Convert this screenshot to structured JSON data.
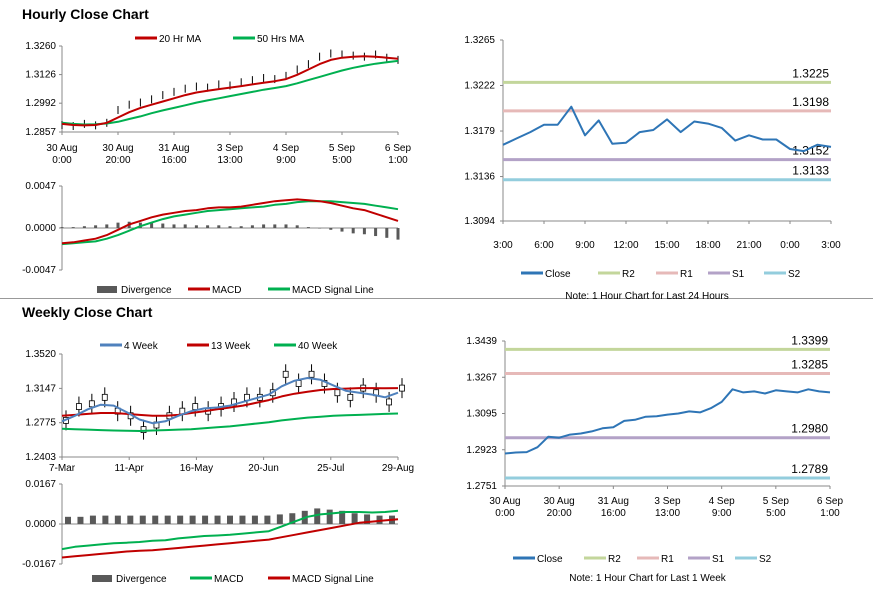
{
  "hourly_title": "Hourly Close Chart",
  "weekly_title": "Weekly Close Chart",
  "note_hourly": "Note: 1 Hour Chart for Last 24 Hours",
  "note_weekly": "Note: 1 Hour Chart for Last 1 Week",
  "colors": {
    "close": "#2e75b6",
    "r2": "#c3d69b",
    "r1": "#e6b9b8",
    "s1": "#b3a2c7",
    "s2": "#93cddd",
    "red": "#c00000",
    "green": "#00b050",
    "blue": "#4f81bd",
    "grey": "#595959"
  },
  "chart_data": [
    {
      "id": "hourly-price",
      "type": "line",
      "legend": [
        "20 Hr MA",
        "50 Hrs MA"
      ],
      "yticks": [
        "1.3260",
        "1.3126",
        "1.2992",
        "1.2857"
      ],
      "ylim": [
        1.2857,
        1.326
      ],
      "xticks": [
        "30 Aug\n0:00",
        "30 Aug\n20:00",
        "31 Aug\n16:00",
        "3 Sep\n13:00",
        "4 Sep\n9:00",
        "5 Sep\n5:00",
        "6 Sep\n1:00"
      ],
      "series": [
        {
          "name": "Close",
          "values": [
            1.289,
            1.2885,
            1.2895,
            1.2888,
            1.29,
            1.296,
            1.2985,
            1.2995,
            1.301,
            1.303,
            1.3045,
            1.306,
            1.307,
            1.3065,
            1.308,
            1.3075,
            1.309,
            1.31,
            1.311,
            1.3105,
            1.312,
            1.315,
            1.3175,
            1.321,
            1.3225,
            1.322,
            1.3215,
            1.321,
            1.322,
            1.3205,
            1.3195
          ]
        },
        {
          "name": "20 Hr MA",
          "values": [
            1.2895,
            1.289,
            1.2888,
            1.289,
            1.29,
            1.2925,
            1.295,
            1.297,
            1.2985,
            1.3,
            1.3015,
            1.303,
            1.3042,
            1.305,
            1.3058,
            1.3065,
            1.3072,
            1.308,
            1.3088,
            1.3095,
            1.3105,
            1.3125,
            1.315,
            1.3175,
            1.3195,
            1.3205,
            1.321,
            1.3212,
            1.321,
            1.3205,
            1.32
          ]
        },
        {
          "name": "50 Hrs MA",
          "values": [
            1.29,
            1.2895,
            1.2892,
            1.2893,
            1.2897,
            1.2905,
            1.2918,
            1.293,
            1.2945,
            1.2958,
            1.297,
            1.2982,
            1.2995,
            1.3005,
            1.3015,
            1.3025,
            1.3035,
            1.3045,
            1.3055,
            1.3063,
            1.3072,
            1.3085,
            1.31,
            1.3115,
            1.313,
            1.3145,
            1.3158,
            1.3168,
            1.3177,
            1.3184,
            1.319
          ]
        }
      ]
    },
    {
      "id": "hourly-macd",
      "type": "line",
      "legend": [
        "Divergence",
        "MACD",
        "MACD Signal Line"
      ],
      "yticks": [
        "0.0047",
        "0.0000",
        "-0.0047"
      ],
      "ylim": [
        -0.0047,
        0.0047
      ],
      "series": [
        {
          "name": "MACD",
          "values": [
            -0.0017,
            -0.0016,
            -0.0014,
            -0.0012,
            -0.0008,
            -0.0002,
            0.0004,
            0.0008,
            0.0012,
            0.0015,
            0.0017,
            0.0019,
            0.002,
            0.0022,
            0.0023,
            0.0023,
            0.0024,
            0.0026,
            0.0028,
            0.003,
            0.0031,
            0.0032,
            0.0031,
            0.003,
            0.0028,
            0.0025,
            0.0022,
            0.002,
            0.0016,
            0.0012,
            0.0008
          ]
        },
        {
          "name": "MACD Signal Line",
          "values": [
            -0.0018,
            -0.0017,
            -0.0016,
            -0.0015,
            -0.0012,
            -0.0008,
            -0.0003,
            0.0002,
            0.0006,
            0.001,
            0.0013,
            0.0015,
            0.0017,
            0.0019,
            0.002,
            0.0021,
            0.0022,
            0.0023,
            0.0024,
            0.0026,
            0.0027,
            0.0029,
            0.003,
            0.003,
            0.003,
            0.0029,
            0.0028,
            0.0027,
            0.0025,
            0.0023,
            0.0021
          ]
        },
        {
          "name": "Divergence",
          "values": [
            0.0001,
            0.0001,
            0.0002,
            0.0003,
            0.0004,
            0.0006,
            0.0007,
            0.0006,
            0.0006,
            0.0005,
            0.0004,
            0.0004,
            0.0003,
            0.0003,
            0.0003,
            0.0002,
            0.0002,
            0.0003,
            0.0004,
            0.0004,
            0.0004,
            0.0003,
            0.0001,
            0.0,
            -0.0002,
            -0.0004,
            -0.0006,
            -0.0007,
            -0.0009,
            -0.0011,
            -0.0013
          ]
        }
      ]
    },
    {
      "id": "hourly-24h",
      "type": "line",
      "yticks": [
        "1.3265",
        "1.3222",
        "1.3179",
        "1.3136",
        "1.3094"
      ],
      "ylim": [
        1.3094,
        1.3265
      ],
      "xticks": [
        "3:00",
        "6:00",
        "9:00",
        "12:00",
        "15:00",
        "18:00",
        "21:00",
        "0:00",
        "3:00"
      ],
      "levels": [
        {
          "name": "R2",
          "value": 1.3225,
          "label": "1.3225"
        },
        {
          "name": "R1",
          "value": 1.3198,
          "label": "1.3198"
        },
        {
          "name": "S1",
          "value": 1.3152,
          "label": "1.3152"
        },
        {
          "name": "S2",
          "value": 1.3133,
          "label": "1.3133"
        }
      ],
      "legend": [
        "Close",
        "R2",
        "R1",
        "S1",
        "S2"
      ],
      "series": [
        {
          "name": "Close",
          "values": [
            1.3166,
            1.3172,
            1.3178,
            1.3185,
            1.3185,
            1.3202,
            1.3175,
            1.3189,
            1.3167,
            1.3168,
            1.3178,
            1.318,
            1.319,
            1.3178,
            1.3188,
            1.3186,
            1.3182,
            1.317,
            1.3175,
            1.3171,
            1.3171,
            1.3162,
            1.316,
            1.3166,
            1.3164
          ]
        }
      ]
    },
    {
      "id": "weekly-price",
      "type": "line",
      "legend": [
        "4 Week",
        "13 Week",
        "40 Week"
      ],
      "yticks": [
        "1.3520",
        "1.3147",
        "1.2775",
        "1.2403"
      ],
      "ylim": [
        1.2403,
        1.352
      ],
      "xticks": [
        "7-Mar",
        "11-Apr",
        "16-May",
        "20-Jun",
        "25-Jul",
        "29-Aug"
      ],
      "series": [
        {
          "name": "Close",
          "values": [
            1.28,
            1.295,
            1.298,
            1.305,
            1.29,
            1.285,
            1.27,
            1.275,
            1.285,
            1.29,
            1.295,
            1.29,
            1.295,
            1.3,
            1.305,
            1.305,
            1.31,
            1.33,
            1.32,
            1.33,
            1.32,
            1.31,
            1.305,
            1.315,
            1.31,
            1.3,
            1.315
          ]
        },
        {
          "name": "4 Week",
          "values": [
            1.279,
            1.285,
            1.292,
            1.297,
            1.296,
            1.289,
            1.281,
            1.277,
            1.279,
            1.285,
            1.29,
            1.293,
            1.294,
            1.296,
            1.3,
            1.304,
            1.308,
            1.317,
            1.323,
            1.326,
            1.324,
            1.318,
            1.312,
            1.31,
            1.308,
            1.305,
            1.31
          ]
        },
        {
          "name": "13 Week",
          "values": [
            1.285,
            1.286,
            1.287,
            1.288,
            1.288,
            1.287,
            1.286,
            1.285,
            1.285,
            1.286,
            1.288,
            1.29,
            1.292,
            1.294,
            1.296,
            1.299,
            1.302,
            1.306,
            1.309,
            1.311,
            1.313,
            1.314,
            1.3145,
            1.315,
            1.315,
            1.3148,
            1.315
          ]
        },
        {
          "name": "40 Week",
          "values": [
            1.271,
            1.2705,
            1.27,
            1.2695,
            1.269,
            1.2688,
            1.2685,
            1.269,
            1.2695,
            1.27,
            1.2705,
            1.2715,
            1.2725,
            1.2735,
            1.275,
            1.2765,
            1.278,
            1.28,
            1.2815,
            1.283,
            1.284,
            1.285,
            1.2855,
            1.286,
            1.2865,
            1.287,
            1.2875
          ]
        }
      ]
    },
    {
      "id": "weekly-macd",
      "type": "line",
      "legend": [
        "Divergence",
        "MACD",
        "MACD Signal Line"
      ],
      "yticks": [
        "0.0167",
        "0.0000",
        "-0.0167"
      ],
      "ylim": [
        -0.0167,
        0.0167
      ],
      "series": [
        {
          "name": "MACD",
          "values": [
            -0.0105,
            -0.0095,
            -0.009,
            -0.0085,
            -0.008,
            -0.0078,
            -0.0075,
            -0.007,
            -0.0068,
            -0.006,
            -0.0055,
            -0.005,
            -0.0048,
            -0.0045,
            -0.004,
            -0.0035,
            -0.003,
            -0.001,
            0.001,
            0.003,
            0.004,
            0.0045,
            0.005,
            0.005,
            0.0048,
            0.005,
            0.0055
          ]
        },
        {
          "name": "MACD Signal Line",
          "values": [
            -0.014,
            -0.0135,
            -0.013,
            -0.0125,
            -0.012,
            -0.0115,
            -0.0112,
            -0.011,
            -0.0105,
            -0.01,
            -0.0095,
            -0.009,
            -0.0085,
            -0.008,
            -0.0075,
            -0.007,
            -0.0065,
            -0.0055,
            -0.0045,
            -0.0035,
            -0.0025,
            -0.0015,
            -0.0005,
            0.0005,
            0.001,
            0.0015,
            0.002
          ]
        },
        {
          "name": "Divergence",
          "values": [
            0.003,
            0.003,
            0.0035,
            0.0035,
            0.0035,
            0.0035,
            0.0035,
            0.0035,
            0.0035,
            0.0035,
            0.0035,
            0.0035,
            0.0035,
            0.0035,
            0.0035,
            0.0035,
            0.0035,
            0.004,
            0.0045,
            0.0055,
            0.0065,
            0.006,
            0.0055,
            0.0045,
            0.004,
            0.0035,
            0.0035
          ]
        }
      ]
    },
    {
      "id": "weekly-1w",
      "type": "line",
      "yticks": [
        "1.3439",
        "1.3267",
        "1.3095",
        "1.2923",
        "1.2751"
      ],
      "ylim": [
        1.2751,
        1.3439
      ],
      "xticks": [
        "30 Aug\n0:00",
        "30 Aug\n20:00",
        "31 Aug\n16:00",
        "3 Sep\n13:00",
        "4 Sep\n9:00",
        "5 Sep\n5:00",
        "6 Sep\n1:00"
      ],
      "levels": [
        {
          "name": "R2",
          "value": 1.3399,
          "label": "1.3399"
        },
        {
          "name": "R1",
          "value": 1.3285,
          "label": "1.3285"
        },
        {
          "name": "S1",
          "value": 1.298,
          "label": "1.2980"
        },
        {
          "name": "S2",
          "value": 1.2789,
          "label": "1.2789"
        }
      ],
      "legend": [
        "Close",
        "R2",
        "R1",
        "S1",
        "S2"
      ],
      "series": [
        {
          "name": "Close",
          "values": [
            1.2905,
            1.291,
            1.2912,
            1.2935,
            1.2985,
            1.298,
            1.2995,
            1.3,
            1.301,
            1.3025,
            1.303,
            1.306,
            1.3065,
            1.308,
            1.3082,
            1.309,
            1.3095,
            1.3105,
            1.31,
            1.312,
            1.315,
            1.321,
            1.3195,
            1.32,
            1.319,
            1.3205,
            1.32,
            1.3195,
            1.321,
            1.32,
            1.3195
          ]
        }
      ]
    }
  ]
}
